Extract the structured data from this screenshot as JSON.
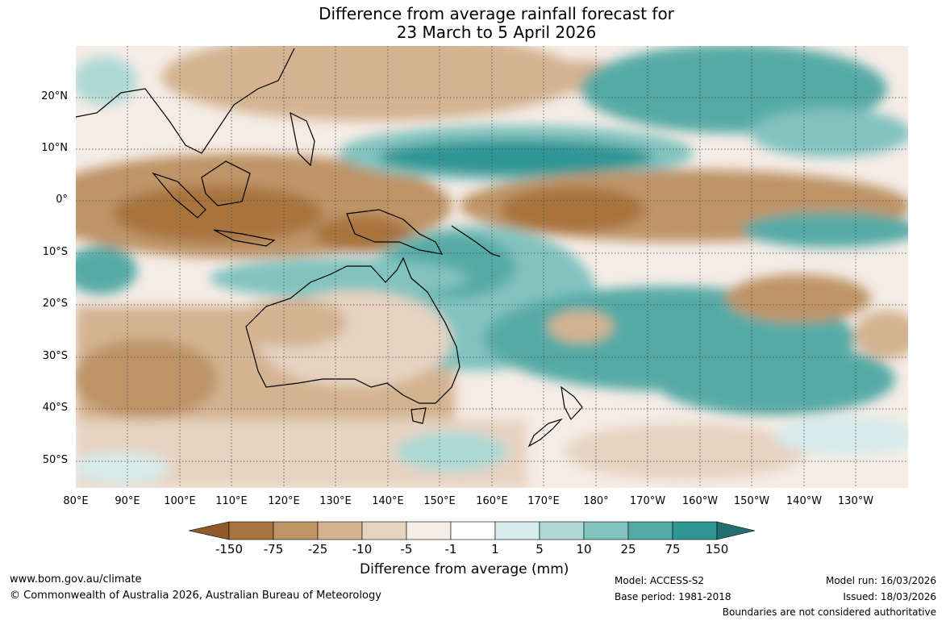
{
  "title": {
    "line1": "Difference from average rainfall forecast for",
    "line2": "23 March to 5 April 2026"
  },
  "latitude_labels": [
    "20°N",
    "10°N",
    "0°",
    "10°S",
    "20°S",
    "30°S",
    "40°S",
    "50°S"
  ],
  "longitude_labels": [
    "80°E",
    "90°E",
    "100°E",
    "110°E",
    "120°E",
    "130°E",
    "140°E",
    "150°E",
    "160°E",
    "170°E",
    "180°",
    "170°W",
    "160°W",
    "150°W",
    "140°W",
    "130°W"
  ],
  "legend": {
    "title": "Difference from average (mm)",
    "ticks": [
      "-150",
      "-75",
      "-25",
      "-10",
      "-5",
      "-1",
      "1",
      "5",
      "10",
      "25",
      "75",
      "150"
    ],
    "colors": [
      "#8c5a2c",
      "#a8733e",
      "#be9468",
      "#d3b391",
      "#e6d3c1",
      "#f5ece6",
      "#ffffff",
      "#d7ebea",
      "#aed9d6",
      "#82c3bf",
      "#56aaa6",
      "#2f9694",
      "#226f6d"
    ]
  },
  "footer": {
    "website": "www.bom.gov.au/climate",
    "copyright": "© Commonwealth of Australia 2026, Australian Bureau of Meteorology",
    "model": "Model: ACCESS-S2",
    "base_period": "Base period: 1981-2018",
    "model_run": "Model run: 16/03/2026",
    "issued": "Issued: 18/03/2026",
    "disclaimer": "Boundaries are not considered authoritative"
  }
}
